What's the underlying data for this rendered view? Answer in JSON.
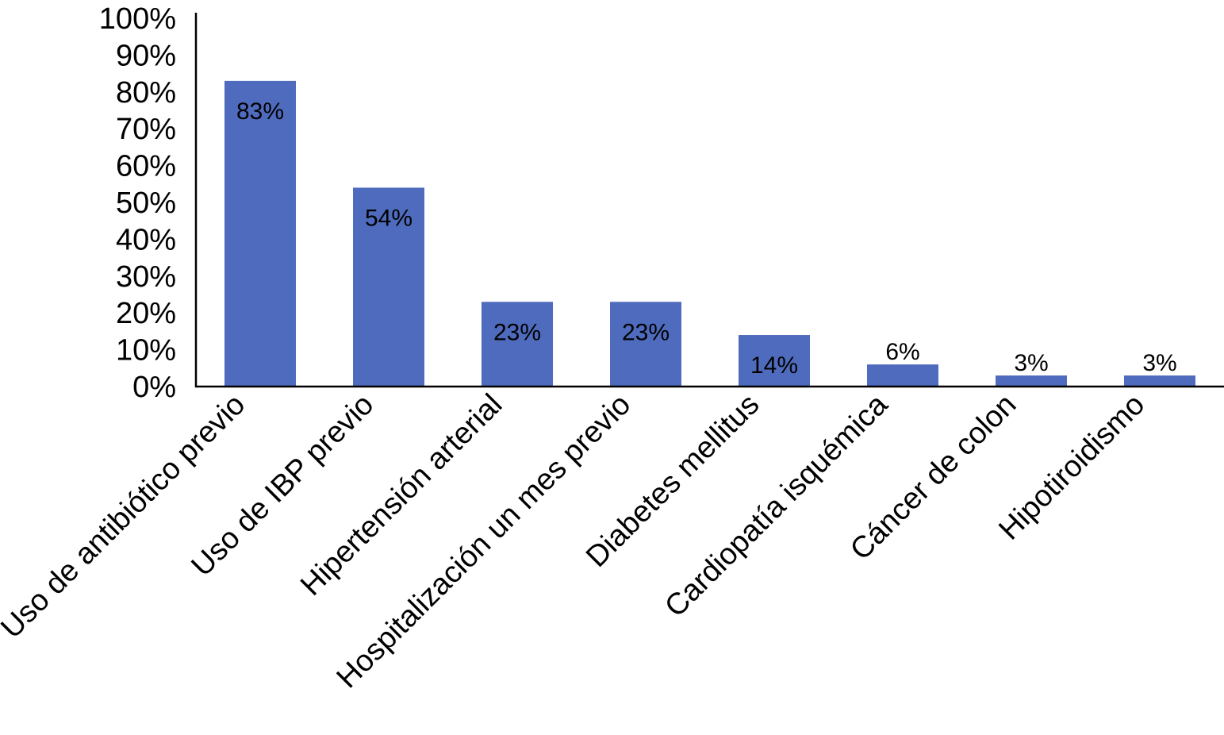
{
  "chart_data": {
    "type": "bar",
    "title": "",
    "xlabel": "",
    "ylabel": "",
    "categories": [
      "Uso de antibiótico previo",
      "Uso de IBP previo",
      "Hipertensión arterial",
      "Hospitalización un mes previo",
      "Diabetes mellitus",
      "Cardiopatía isquémica",
      "Cáncer de colon",
      "Hipotiroidismo"
    ],
    "values": [
      83,
      54,
      23,
      23,
      14,
      6,
      3,
      3
    ],
    "data_labels": [
      "83%",
      "54%",
      "23%",
      "23%",
      "14%",
      "6%",
      "3%",
      "3%"
    ],
    "ylim": [
      0,
      100
    ],
    "yticks": [
      "0%",
      "10%",
      "20%",
      "30%",
      "40%",
      "50%",
      "60%",
      "70%",
      "80%",
      "90%",
      "100%"
    ],
    "grid": false,
    "legend": "none",
    "bar_color": "#4f6bbd"
  }
}
